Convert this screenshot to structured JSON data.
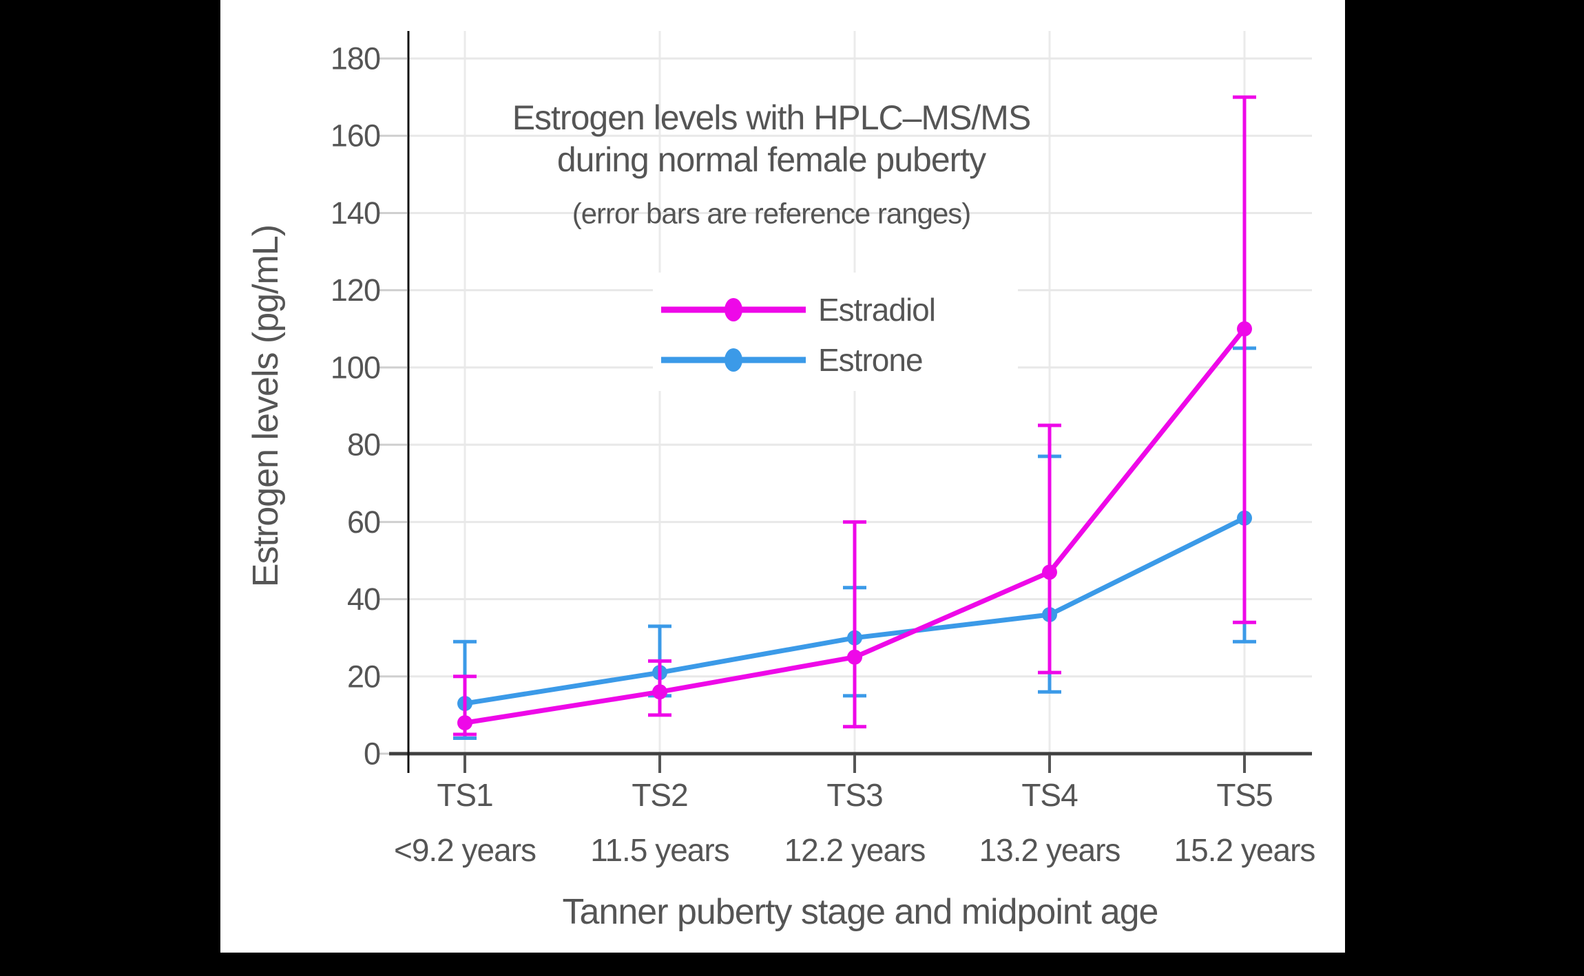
{
  "figure": {
    "background_color": "#000000",
    "panel_color": "#ffffff",
    "text_color": "#555555",
    "grid_color": "#e8e8e8",
    "x_axis_color": "#404040",
    "y_axis_color": "#111111"
  },
  "chart_data": {
    "type": "line",
    "title_lines": [
      "Estrogen levels with HPLC–MS/MS",
      "during normal female puberty"
    ],
    "subtitle": "(error bars are reference ranges)",
    "xlabel": "Tanner puberty stage and midpoint age",
    "ylabel": "Estrogen levels (pg/mL)",
    "categories": [
      "TS1",
      "TS2",
      "TS3",
      "TS4",
      "TS5"
    ],
    "category_sublabels": [
      "<9.2 years",
      "11.5 years",
      "12.2 years",
      "13.2 years",
      "15.2 years"
    ],
    "yticks": [
      0,
      20,
      40,
      60,
      80,
      100,
      120,
      140,
      160,
      180
    ],
    "ylim": [
      0,
      185
    ],
    "grid": true,
    "legend_position": "upper center",
    "series": [
      {
        "name": "Estradiol",
        "color": "#ee08e8",
        "values": [
          8,
          16,
          25,
          47,
          110
        ],
        "error_low": [
          5,
          10,
          7,
          21,
          34
        ],
        "error_high": [
          20,
          24,
          60,
          85,
          170
        ]
      },
      {
        "name": "Estrone",
        "color": "#3b9ae8",
        "values": [
          13,
          21,
          30,
          36,
          61
        ],
        "error_low": [
          4,
          15,
          15,
          16,
          29
        ],
        "error_high": [
          29,
          33,
          43,
          77,
          105
        ]
      }
    ]
  }
}
